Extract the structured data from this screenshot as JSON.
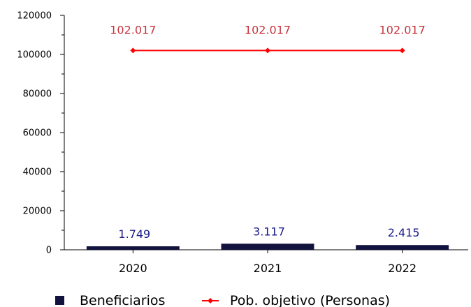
{
  "chart_data": {
    "type": "bar",
    "categories": [
      "2020",
      "2021",
      "2022"
    ],
    "series": [
      {
        "name": "Beneficiarios",
        "kind": "bar",
        "values": [
          1749,
          3117,
          2415
        ],
        "labels": [
          "1.749",
          "3.117",
          "2.415"
        ],
        "color": "#12123e"
      },
      {
        "name": "Pob. objetivo (Personas)",
        "kind": "line",
        "values": [
          102017,
          102017,
          102017
        ],
        "labels": [
          "102.017",
          "102.017",
          "102.017"
        ],
        "color": "#ff0000",
        "label_color": "#c8323c"
      }
    ],
    "yticks": [
      0,
      20000,
      40000,
      60000,
      80000,
      100000,
      120000
    ],
    "ylim": [
      0,
      120000
    ],
    "grid": false,
    "legend_position": "bottom"
  }
}
